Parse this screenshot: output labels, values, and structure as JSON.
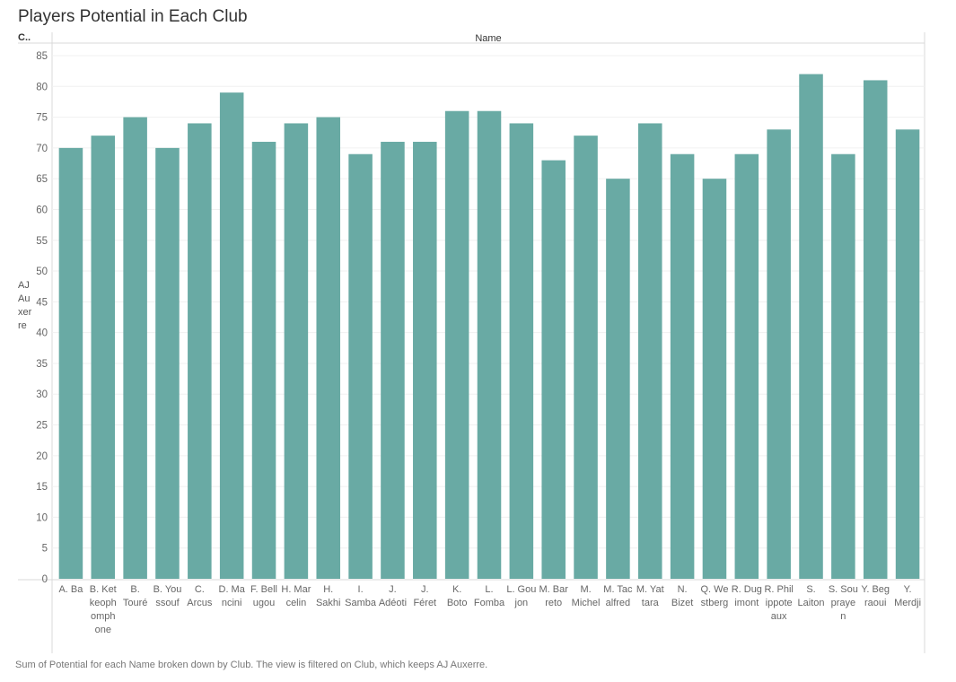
{
  "title": "Players Potential in Each Club",
  "column_header": "C..",
  "column_field": "Name",
  "row_value": "AJ Auxerre",
  "caption": "Sum of Potential for each Name broken down by Club. The view is filtered on Club, which keeps AJ Auxerre.",
  "colors": {
    "bar": "#69aaa4",
    "grid": "#f0f0f0",
    "axis": "#d9d9d9"
  },
  "chart_data": {
    "type": "bar",
    "title": "Players Potential in Each Club",
    "xlabel": "Name",
    "ylabel": "AJ Auxerre",
    "ylim": [
      0,
      88
    ],
    "yticks": [
      0,
      5,
      10,
      15,
      20,
      25,
      30,
      35,
      40,
      45,
      50,
      55,
      60,
      65,
      70,
      75,
      80,
      85
    ],
    "grid": true,
    "categories": [
      "A. Ba",
      "B. Ketkeophomphone",
      "B. Touré",
      "B. Youssouf",
      "C. Arcus",
      "D. Mancini",
      "F. Bellugou",
      "H. Marcelin",
      "H. Sakhi",
      "I. Samba",
      "J. Adéoti",
      "J. Féret",
      "K. Boto",
      "L. Fomba",
      "L. Goujon",
      "M. Barreto",
      "M. Michel",
      "M. Tacalfred",
      "M. Yattara",
      "N. Bizet",
      "Q. Westberg",
      "R. Dugimont",
      "R. Philippoteaux",
      "S. Laiton",
      "S. Souprayen",
      "Y. Begraoui",
      "Y. Merdji"
    ],
    "tick_label_lines": [
      [
        "A. Ba"
      ],
      [
        "B. Ket",
        "keoph",
        "omph",
        "one"
      ],
      [
        "B.",
        "Touré"
      ],
      [
        "B. You",
        "ssouf"
      ],
      [
        "C.",
        "Arcus"
      ],
      [
        "D. Ma",
        "ncini"
      ],
      [
        "F. Bell",
        "ugou"
      ],
      [
        "H. Mar",
        "celin"
      ],
      [
        "H.",
        "Sakhi"
      ],
      [
        "I.",
        "Samba"
      ],
      [
        "J.",
        "Adéoti"
      ],
      [
        "J.",
        "Féret"
      ],
      [
        "K.",
        "Boto"
      ],
      [
        "L.",
        "Fomba"
      ],
      [
        "L. Gou",
        "jon"
      ],
      [
        "M. Bar",
        "reto"
      ],
      [
        "M.",
        "Michel"
      ],
      [
        "M. Tac",
        "alfred"
      ],
      [
        "M. Yat",
        "tara"
      ],
      [
        "N.",
        "Bizet"
      ],
      [
        "Q. We",
        "stberg"
      ],
      [
        "R. Dug",
        "imont"
      ],
      [
        "R. Phil",
        "ippote",
        "aux"
      ],
      [
        "S.",
        "Laiton"
      ],
      [
        "S. Sou",
        "praye",
        "n"
      ],
      [
        "Y. Beg",
        "raoui"
      ],
      [
        "Y.",
        "Merdji"
      ]
    ],
    "values": [
      70,
      72,
      75,
      70,
      74,
      79,
      71,
      74,
      75,
      69,
      71,
      71,
      76,
      76,
      74,
      68,
      72,
      65,
      74,
      69,
      65,
      69,
      73,
      82,
      69,
      81,
      73
    ]
  }
}
